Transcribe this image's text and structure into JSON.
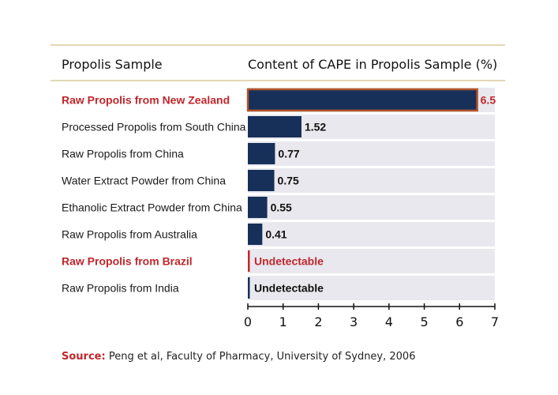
{
  "chart_data": {
    "type": "bar",
    "orientation": "horizontal",
    "category_header": "Propolis Sample",
    "value_header": "Content of CAPE in Propolis Sample (%)",
    "categories": [
      "Raw Propolis from New Zealand",
      "Processed Propolis from South China",
      "Raw Propolis from China",
      "Water Extract Powder from China",
      "Ethanolic Extract Powder from China",
      "Raw Propolis from Australia",
      "Raw Propolis from Brazil",
      "Raw Propolis from India"
    ],
    "values": [
      6.5,
      1.52,
      0.77,
      0.75,
      0.55,
      0.41,
      0,
      0
    ],
    "value_labels": [
      "6.5",
      "1.52",
      "0.77",
      "0.75",
      "0.55",
      "0.41",
      "Undetectable",
      "Undetectable"
    ],
    "highlight": [
      true,
      false,
      false,
      false,
      false,
      false,
      true,
      false
    ],
    "xlim": [
      0,
      7
    ],
    "xticks": [
      "0",
      "1",
      "2",
      "3",
      "4",
      "5",
      "6",
      "7"
    ],
    "colors": {
      "bar": "#17305a",
      "track": "#e8e8ee",
      "highlight_text": "#c0272d",
      "highlight_outline": "#b5562b",
      "rule": "#d8cc9a"
    }
  },
  "source": {
    "label": "Source:",
    "text": "Peng et al, Faculty of Pharmacy, University of Sydney, 2006"
  }
}
